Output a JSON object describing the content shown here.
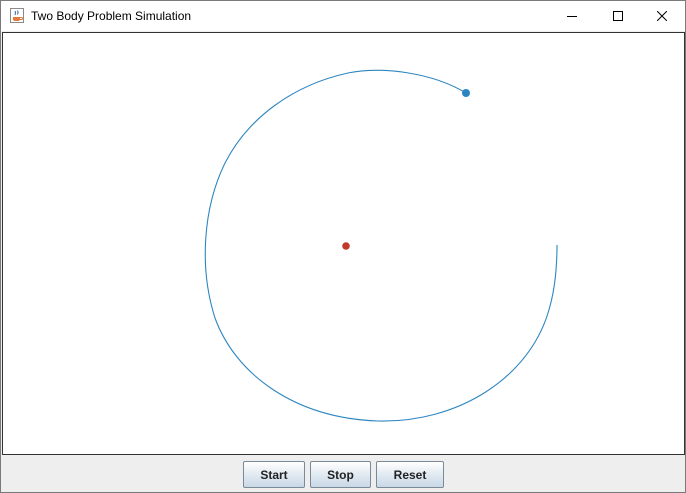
{
  "window": {
    "title": "Two Body Problem Simulation",
    "icon": "java-cup-icon"
  },
  "titlebar_buttons": {
    "minimize_icon": "minimize-icon",
    "maximize_icon": "maximize-icon",
    "close_icon": "close-icon"
  },
  "simulation": {
    "central_body_color": "#c0392b",
    "orbiting_body_color": "#2e86c1",
    "orbit_trail_color": "#2e86c1"
  },
  "controls": {
    "start_label": "Start",
    "stop_label": "Stop",
    "reset_label": "Reset"
  }
}
